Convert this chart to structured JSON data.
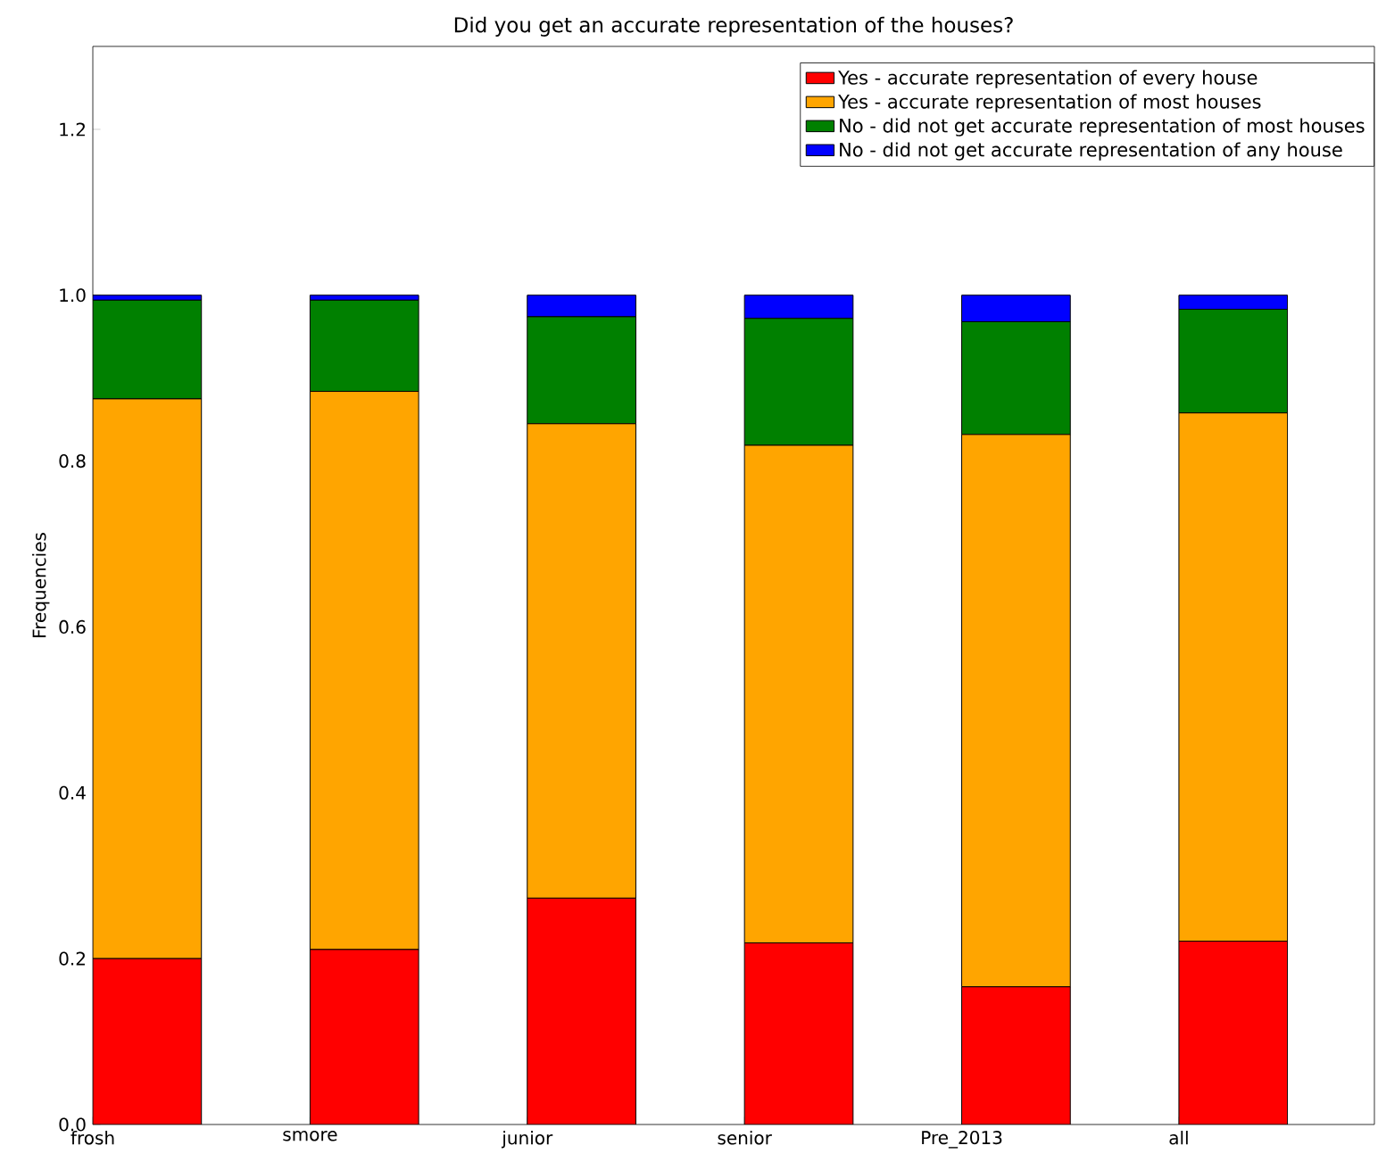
{
  "chart_data": {
    "type": "bar",
    "stacked": true,
    "title": "Did you get an accurate representation of the houses?",
    "ylabel": "Frequencies",
    "categories": [
      "frosh",
      "smore",
      "junior",
      "senior",
      "Pre_2013",
      "all"
    ],
    "series": [
      {
        "name": "Yes - accurate representation of every house",
        "color": "#ff0000",
        "values": [
          0.2,
          0.211,
          0.273,
          0.219,
          0.166,
          0.221
        ]
      },
      {
        "name": "Yes - accurate representation of most houses",
        "color": "#ffa500",
        "values": [
          0.675,
          0.673,
          0.572,
          0.6,
          0.666,
          0.637
        ]
      },
      {
        "name": "No - did not get accurate representation of most houses",
        "color": "#008000",
        "values": [
          0.119,
          0.11,
          0.129,
          0.153,
          0.136,
          0.125
        ]
      },
      {
        "name": "No - did not get accurate representation of any house",
        "color": "#0000ff",
        "values": [
          0.006,
          0.006,
          0.026,
          0.028,
          0.032,
          0.017
        ]
      }
    ],
    "ylim": [
      0,
      1.3
    ],
    "yticks": [
      {
        "value": 0,
        "label": "0.0"
      },
      {
        "value": 0.2,
        "label": "0.2"
      },
      {
        "value": 0.4,
        "label": "0.4"
      },
      {
        "value": 0.6,
        "label": "0.6"
      },
      {
        "value": 0.8,
        "label": "0.8"
      },
      {
        "value": 1.0,
        "label": "1.0"
      },
      {
        "value": 1.2,
        "label": "1.2"
      }
    ],
    "grid": false,
    "legend": "top right"
  }
}
